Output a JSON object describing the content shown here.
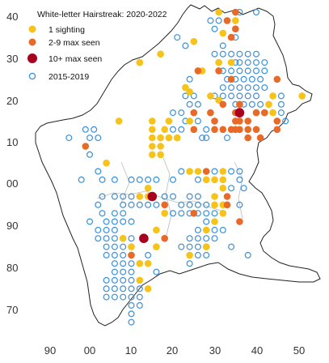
{
  "chart_data": {
    "type": "scatter",
    "title": "White-letter Hairstreak: 2020-2022",
    "xlabel": "",
    "ylabel": "",
    "x_ticks": [
      "90",
      "00",
      "10",
      "20",
      "30",
      "40",
      "50"
    ],
    "y_ticks": [
      "40",
      "30",
      "20",
      "10",
      "00",
      "90",
      "80",
      "70"
    ],
    "legend": [
      {
        "key": "sighting1",
        "label": "1 sighting",
        "color": "#F5C31A",
        "style": "filled"
      },
      {
        "key": "max2to9",
        "label": "2-9 max seen",
        "color": "#E86A28",
        "style": "filled"
      },
      {
        "key": "max10plus",
        "label": "10+ max seen",
        "color": "#A8001E",
        "style": "filled"
      },
      {
        "key": "old",
        "label": "2015-2019",
        "color": "#3B8FD8",
        "style": "open"
      }
    ],
    "series": {
      "sighting1": [
        [
          31,
          41
        ],
        [
          35,
          39
        ],
        [
          32,
          36
        ],
        [
          17,
          31
        ],
        [
          12,
          29
        ],
        [
          25,
          34
        ],
        [
          31,
          29
        ],
        [
          34,
          29
        ],
        [
          27,
          27
        ],
        [
          23,
          23
        ],
        [
          24,
          22
        ],
        [
          29,
          21
        ],
        [
          31,
          20
        ],
        [
          43,
          19
        ],
        [
          44,
          17
        ],
        [
          51,
          21
        ],
        [
          42,
          17
        ],
        [
          44,
          21
        ],
        [
          7,
          15
        ],
        [
          15,
          15
        ],
        [
          19,
          15
        ],
        [
          18,
          13
        ],
        [
          24,
          15
        ],
        [
          15,
          13
        ],
        [
          15,
          11
        ],
        [
          19,
          11
        ],
        [
          17,
          11
        ],
        [
          21,
          11
        ],
        [
          15,
          9
        ],
        [
          17,
          9
        ],
        [
          15,
          7
        ],
        [
          17,
          7
        ],
        [
          4,
          5
        ],
        [
          24,
          3
        ],
        [
          26,
          3
        ],
        [
          28,
          1
        ],
        [
          30,
          1
        ],
        [
          32,
          3
        ],
        [
          32,
          1
        ],
        [
          32,
          -1
        ],
        [
          30,
          -3
        ],
        [
          30,
          -5
        ],
        [
          32,
          -5
        ],
        [
          32,
          -7
        ],
        [
          12,
          -3
        ],
        [
          14,
          -3
        ],
        [
          14,
          -1
        ],
        [
          18,
          -7
        ],
        [
          30,
          -9
        ],
        [
          28,
          -11
        ],
        [
          8,
          -13
        ],
        [
          10,
          -15
        ],
        [
          16,
          -11
        ],
        [
          16,
          -15
        ],
        [
          24,
          -17
        ],
        [
          28,
          -15
        ],
        [
          12,
          -19
        ],
        [
          14,
          -19
        ],
        [
          12,
          -23
        ],
        [
          14,
          -25
        ]
      ],
      "max2to9": [
        [
          35,
          41
        ],
        [
          35,
          37
        ],
        [
          33,
          39
        ],
        [
          34,
          35
        ],
        [
          26,
          27
        ],
        [
          31,
          27
        ],
        [
          34,
          25
        ],
        [
          45,
          25
        ],
        [
          32,
          19
        ],
        [
          36,
          19
        ],
        [
          35,
          17
        ],
        [
          38,
          15
        ],
        [
          29,
          17
        ],
        [
          30,
          15
        ],
        [
          25,
          13
        ],
        [
          35,
          15
        ],
        [
          36,
          15
        ],
        [
          34,
          13
        ],
        [
          35,
          13
        ],
        [
          36,
          13
        ],
        [
          38,
          13
        ],
        [
          40,
          13
        ],
        [
          42,
          17
        ],
        [
          40,
          17
        ],
        [
          41,
          11
        ],
        [
          30,
          13
        ],
        [
          32,
          13
        ],
        [
          25,
          17
        ],
        [
          38,
          11
        ],
        [
          45,
          15
        ],
        [
          45,
          13
        ],
        [
          -1,
          9
        ],
        [
          28,
          3
        ],
        [
          33,
          -5
        ],
        [
          33,
          -3
        ],
        [
          18,
          -5
        ],
        [
          18,
          -13
        ],
        [
          25,
          -7
        ],
        [
          36,
          -9
        ],
        [
          10,
          -17
        ]
      ],
      "max10plus": [
        [
          36,
          17
        ],
        [
          15,
          -3
        ],
        [
          13,
          -13
        ]
      ],
      "old": [
        [
          36,
          41
        ],
        [
          40,
          41
        ],
        [
          29,
          39
        ],
        [
          30,
          37
        ],
        [
          31,
          39
        ],
        [
          35,
          35
        ],
        [
          32,
          33
        ],
        [
          21,
          35
        ],
        [
          23,
          33
        ],
        [
          36,
          31
        ],
        [
          34,
          31
        ],
        [
          40,
          31
        ],
        [
          38,
          31
        ],
        [
          30,
          31
        ],
        [
          32,
          31
        ],
        [
          35,
          29
        ],
        [
          36,
          29
        ],
        [
          38,
          29
        ],
        [
          40,
          29
        ],
        [
          42,
          29
        ],
        [
          32,
          27
        ],
        [
          34,
          27
        ],
        [
          36,
          27
        ],
        [
          38,
          27
        ],
        [
          40,
          27
        ],
        [
          42,
          27
        ],
        [
          33,
          25
        ],
        [
          35,
          25
        ],
        [
          37,
          25
        ],
        [
          39,
          25
        ],
        [
          41,
          25
        ],
        [
          32,
          23
        ],
        [
          34,
          23
        ],
        [
          36,
          23
        ],
        [
          38,
          23
        ],
        [
          40,
          23
        ],
        [
          42,
          23
        ],
        [
          30,
          21
        ],
        [
          32,
          21
        ],
        [
          34,
          21
        ],
        [
          36,
          21
        ],
        [
          38,
          21
        ],
        [
          40,
          21
        ],
        [
          35,
          19
        ],
        [
          37,
          19
        ],
        [
          39,
          19
        ],
        [
          41,
          19
        ],
        [
          24,
          25
        ],
        [
          23,
          21
        ],
        [
          24,
          19
        ],
        [
          25,
          21
        ],
        [
          25,
          17
        ],
        [
          26,
          19
        ],
        [
          22,
          17
        ],
        [
          20,
          17
        ],
        [
          23,
          15
        ],
        [
          26,
          15
        ],
        [
          28,
          13
        ],
        [
          27,
          11
        ],
        [
          22,
          13
        ],
        [
          20,
          13
        ],
        [
          28,
          11
        ],
        [
          33,
          11
        ],
        [
          46,
          21
        ],
        [
          46,
          19
        ],
        [
          46,
          17
        ],
        [
          47,
          15
        ],
        [
          -5,
          11
        ],
        [
          2,
          11
        ],
        [
          -1,
          13
        ],
        [
          1,
          13
        ],
        [
          0,
          11
        ],
        [
          0,
          7
        ],
        [
          2,
          3
        ],
        [
          6,
          1
        ],
        [
          3,
          1
        ],
        [
          -2,
          1
        ],
        [
          10,
          1
        ],
        [
          12,
          1
        ],
        [
          14,
          1
        ],
        [
          16,
          1
        ],
        [
          20,
          1
        ],
        [
          22,
          3
        ],
        [
          26,
          1
        ],
        [
          30,
          3
        ],
        [
          34,
          3
        ],
        [
          36,
          3
        ],
        [
          36,
          1
        ],
        [
          37,
          -1
        ],
        [
          34,
          -1
        ],
        [
          36,
          -5
        ],
        [
          30,
          -7
        ],
        [
          28,
          -7
        ],
        [
          26,
          -7
        ],
        [
          28,
          -9
        ],
        [
          28,
          -5
        ],
        [
          26,
          -5
        ],
        [
          26,
          -3
        ],
        [
          24,
          -3
        ],
        [
          20,
          -3
        ],
        [
          22,
          -5
        ],
        [
          24,
          -5
        ],
        [
          24,
          -7
        ],
        [
          22,
          -7
        ],
        [
          20,
          -7
        ],
        [
          18,
          -3
        ],
        [
          16,
          -5
        ],
        [
          14,
          -5
        ],
        [
          12,
          -5
        ],
        [
          10,
          -5
        ],
        [
          8,
          -5
        ],
        [
          10,
          -3
        ],
        [
          8,
          -3
        ],
        [
          6,
          -3
        ],
        [
          3,
          -3
        ],
        [
          2,
          -5
        ],
        [
          8,
          -7
        ],
        [
          6,
          -7
        ],
        [
          3,
          -7
        ],
        [
          10,
          -9
        ],
        [
          8,
          -9
        ],
        [
          6,
          -9
        ],
        [
          6,
          -11
        ],
        [
          4,
          -11
        ],
        [
          6,
          -13
        ],
        [
          4,
          -13
        ],
        [
          10,
          -13
        ],
        [
          8,
          -15
        ],
        [
          6,
          -15
        ],
        [
          4,
          -15
        ],
        [
          8,
          -17
        ],
        [
          6,
          -17
        ],
        [
          4,
          -17
        ],
        [
          14,
          -17
        ],
        [
          24,
          -13
        ],
        [
          26,
          -13
        ],
        [
          28,
          -13
        ],
        [
          26,
          -11
        ],
        [
          30,
          -11
        ],
        [
          32,
          -11
        ],
        [
          30,
          -13
        ],
        [
          22,
          -15
        ],
        [
          24,
          -15
        ],
        [
          26,
          -15
        ],
        [
          26,
          -17
        ],
        [
          28,
          -17
        ],
        [
          24,
          -19
        ],
        [
          34,
          -15
        ],
        [
          38,
          -17
        ],
        [
          10,
          -19
        ],
        [
          8,
          -19
        ],
        [
          6,
          -19
        ],
        [
          10,
          -21
        ],
        [
          8,
          -21
        ],
        [
          6,
          -21
        ],
        [
          8,
          -23
        ],
        [
          6,
          -23
        ],
        [
          4,
          -23
        ],
        [
          10,
          -23
        ],
        [
          12,
          -25
        ],
        [
          10,
          -25
        ],
        [
          8,
          -25
        ],
        [
          6,
          -25
        ],
        [
          4,
          -25
        ],
        [
          12,
          -27
        ],
        [
          10,
          -27
        ],
        [
          8,
          -27
        ],
        [
          6,
          -27
        ],
        [
          4,
          -27
        ],
        [
          10,
          -29
        ],
        [
          12,
          -29
        ],
        [
          16,
          -21
        ],
        [
          10,
          -31
        ],
        [
          10,
          -33
        ],
        [
          0,
          -9
        ],
        [
          2,
          -13
        ],
        [
          2,
          -11
        ],
        [
          4,
          -9
        ]
      ]
    }
  }
}
